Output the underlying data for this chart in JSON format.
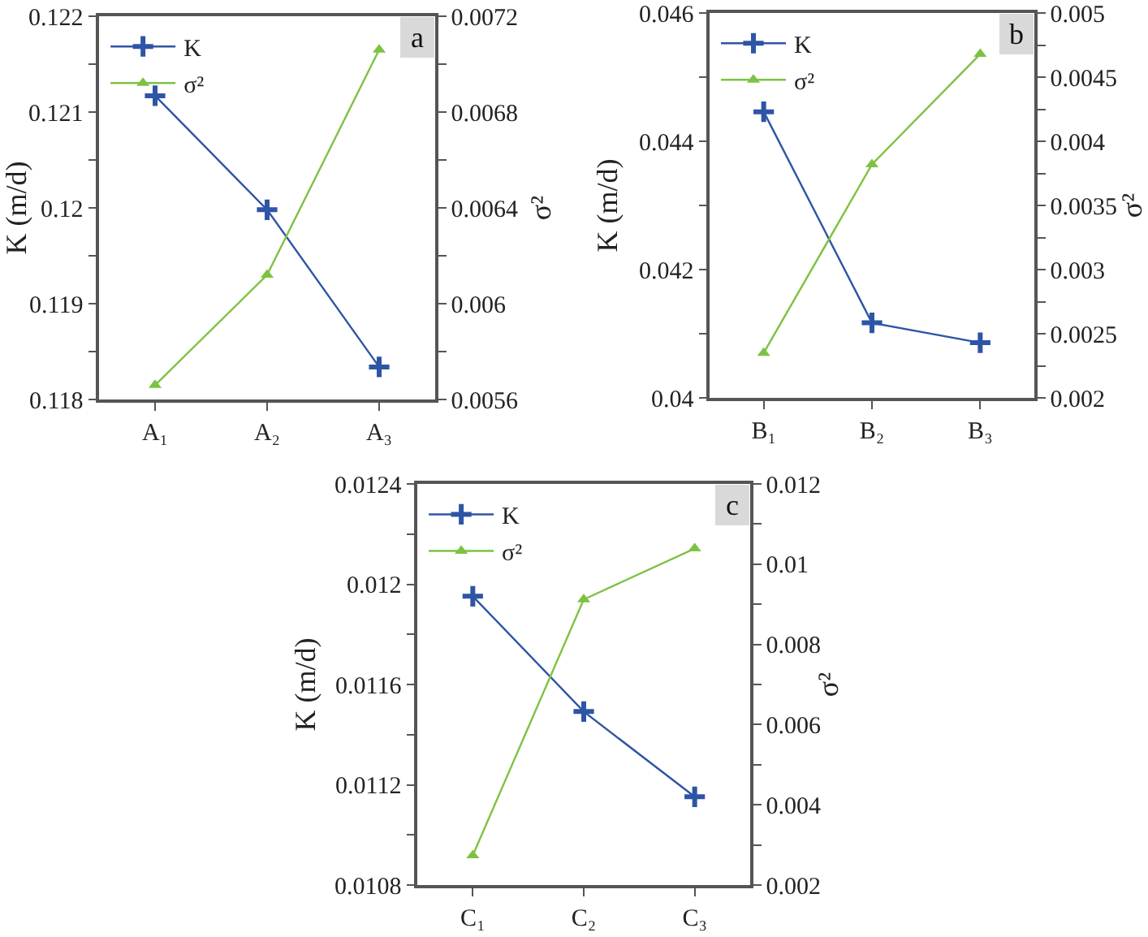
{
  "chart_data": [
    {
      "type": "line",
      "annotations": [
        "a"
      ],
      "categories": [
        "A₁",
        "A₂",
        "A₃"
      ],
      "ylabel": "K (m/d)",
      "y2label": "σ²",
      "legend": "top left",
      "grid": false,
      "ylim": [
        0.118,
        0.122
      ],
      "yticks": [
        0.118,
        {
          "value": 0.1185,
          "label": null
        },
        0.119,
        {
          "value": 0.1195,
          "label": null
        },
        0.12,
        {
          "value": 0.1205,
          "label": null
        },
        0.121,
        {
          "value": 0.1215,
          "label": null
        },
        0.122
      ],
      "y2lim": [
        0.0056,
        0.0072
      ],
      "y2ticks": [
        0.0056,
        {
          "value": 0.0058,
          "label": null
        },
        0.006,
        {
          "value": 0.0062,
          "label": null
        },
        0.0064,
        {
          "value": 0.0066,
          "label": null
        },
        0.0068,
        {
          "value": 0.007,
          "label": null
        },
        0.0072
      ],
      "series": [
        {
          "name": "K",
          "color": "#2e55a5",
          "marker": "cross",
          "values": [
            0.12117,
            0.11998,
            0.11834
          ]
        },
        {
          "name": "σ²",
          "color": "#7dc242",
          "marker": "triangle",
          "axis": "y2",
          "values": [
            0.00566,
            0.00612,
            0.00706
          ]
        }
      ]
    },
    {
      "type": "line",
      "annotations": [
        "b"
      ],
      "categories": [
        "B₁",
        "B₂",
        "B₃"
      ],
      "ylabel": "K (m/d)",
      "y2label": "σ²",
      "legend": "top left",
      "grid": false,
      "ylim": [
        0.04,
        0.046
      ],
      "yticks": [
        0.04,
        {
          "value": 0.041,
          "label": null
        },
        0.042,
        {
          "value": 0.043,
          "label": null
        },
        0.044,
        {
          "value": 0.045,
          "label": null
        },
        0.046
      ],
      "y2lim": [
        0.002,
        0.005
      ],
      "y2ticks": [
        0.002,
        {
          "value": 0.00225,
          "label": null
        },
        0.0025,
        {
          "value": 0.00275,
          "label": null
        },
        0.003,
        {
          "value": 0.00325,
          "label": null
        },
        0.0035,
        {
          "value": 0.00375,
          "label": null
        },
        0.004,
        {
          "value": 0.00425,
          "label": null
        },
        0.0045,
        {
          "value": 0.00475,
          "label": null
        },
        0.005
      ],
      "series": [
        {
          "name": "K",
          "color": "#2e55a5",
          "marker": "cross",
          "values": [
            0.04446,
            0.04117,
            0.04086
          ]
        },
        {
          "name": "σ²",
          "color": "#7dc242",
          "marker": "triangle",
          "axis": "y2",
          "values": [
            0.00235,
            0.00382,
            0.00468
          ]
        }
      ]
    },
    {
      "type": "line",
      "annotations": [
        "c"
      ],
      "categories": [
        "C₁",
        "C₂",
        "C₃"
      ],
      "ylabel": "K (m/d)",
      "y2label": "σ²",
      "legend": "top left",
      "grid": false,
      "ylim": [
        0.0108,
        0.0124
      ],
      "yticks": [
        0.0108,
        {
          "value": 0.011,
          "label": null
        },
        0.0112,
        {
          "value": 0.0114,
          "label": null
        },
        0.0116,
        {
          "value": 0.0118,
          "label": null
        },
        0.012,
        {
          "value": 0.0122,
          "label": null
        },
        0.0124
      ],
      "y2lim": [
        0.002,
        0.012
      ],
      "y2ticks": [
        0.002,
        {
          "value": 0.003,
          "label": null
        },
        0.004,
        {
          "value": 0.005,
          "label": null
        },
        0.006,
        {
          "value": 0.007,
          "label": null
        },
        0.008,
        {
          "value": 0.009,
          "label": null
        },
        0.01,
        {
          "value": 0.011,
          "label": null
        },
        0.012
      ],
      "series": [
        {
          "name": "K",
          "color": "#2e55a5",
          "marker": "cross",
          "values": [
            0.011952,
            0.011492,
            0.011152
          ]
        },
        {
          "name": "σ²",
          "color": "#7dc242",
          "marker": "triangle",
          "axis": "y2",
          "values": [
            0.00274,
            0.00912,
            0.01039
          ]
        }
      ]
    }
  ]
}
